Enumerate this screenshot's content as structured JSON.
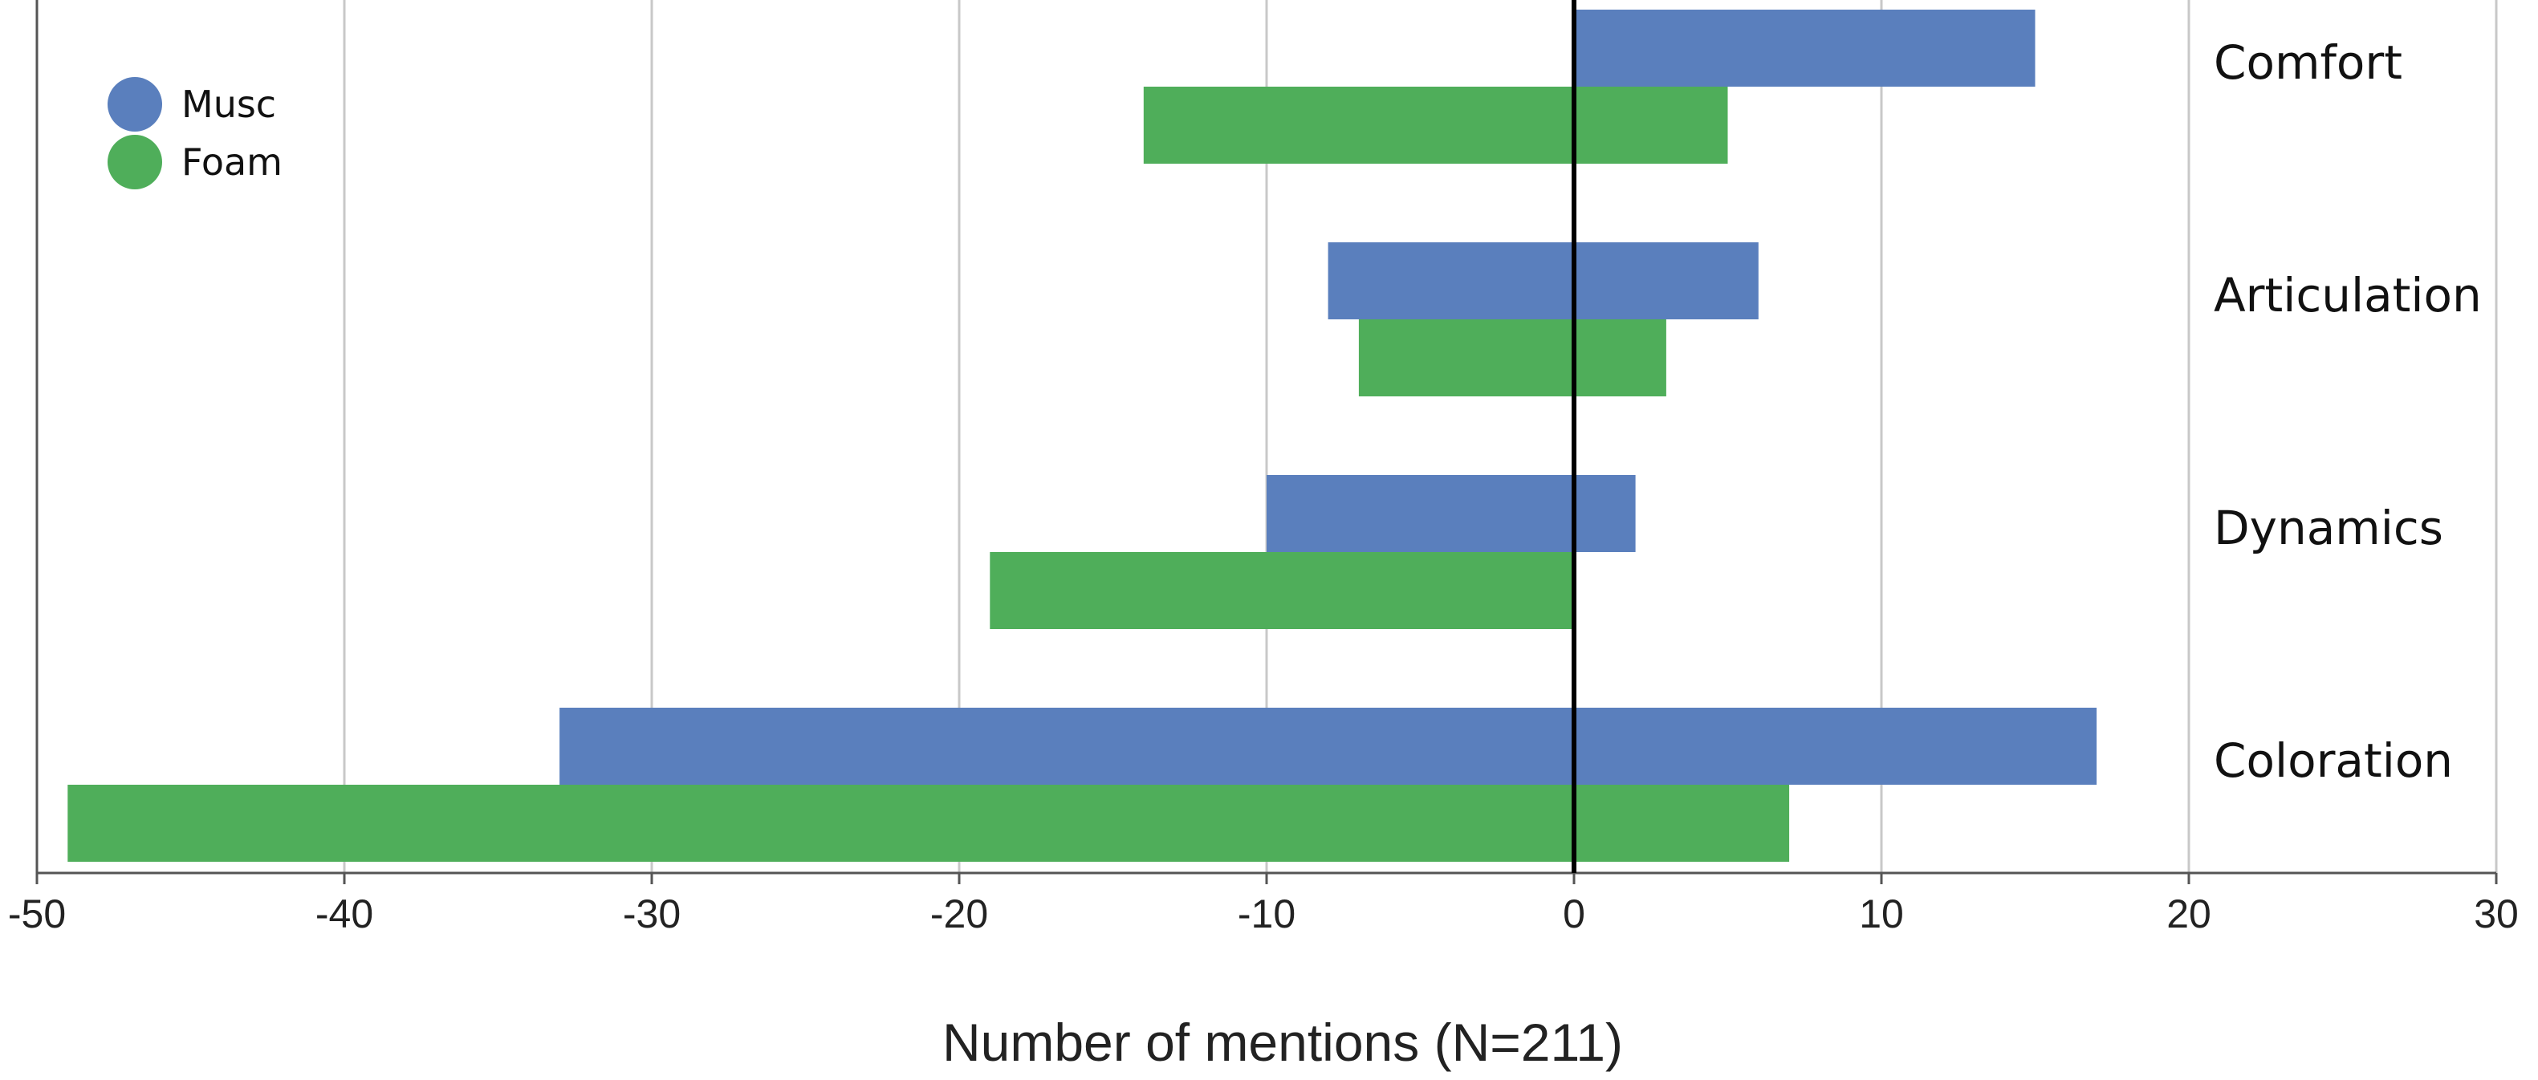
{
  "chart_data": {
    "type": "bar",
    "orientation": "horizontal",
    "layout": "diverging",
    "title": "",
    "xlabel": "Number of mentions (N=211)",
    "ylabel": "",
    "xlim": [
      -50,
      30
    ],
    "xticks": [
      -50,
      -40,
      -30,
      -20,
      -10,
      0,
      10,
      20,
      30
    ],
    "xtick_labels": [
      "-50",
      "-40",
      "-30",
      "-20",
      "-10",
      "0",
      "10",
      "20",
      "30"
    ],
    "grid": "vertical",
    "legend_position": "top-left",
    "categories": [
      "Comfort",
      "Articulation",
      "Dynamics",
      "Coloration"
    ],
    "series": [
      {
        "name": "Musc",
        "color": "#5a7fbd",
        "negative": [
          0,
          -8,
          -10,
          -33
        ],
        "positive": [
          15,
          6,
          2,
          17
        ]
      },
      {
        "name": "Foam",
        "color": "#4fae5a",
        "negative": [
          -14,
          -7,
          -19,
          -49
        ],
        "positive": [
          5,
          3,
          0,
          7
        ]
      }
    ]
  }
}
